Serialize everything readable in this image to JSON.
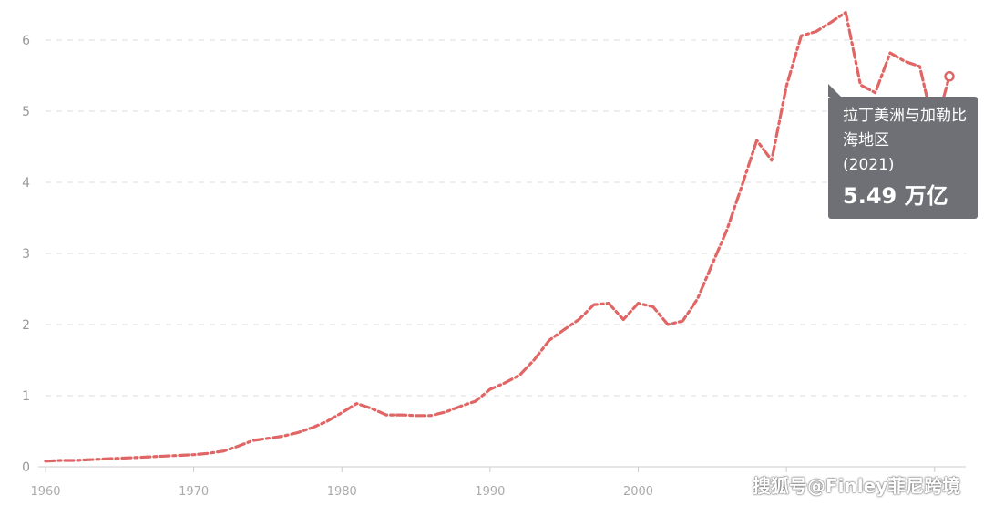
{
  "chart_data": {
    "type": "line",
    "title": "",
    "xlabel": "",
    "ylabel": "",
    "xlim": [
      1960,
      2021
    ],
    "ylim": [
      0,
      6.4
    ],
    "grid": true,
    "line_style": "dash-dot",
    "color": "#e06666",
    "y_ticks": [
      "0",
      "1",
      "2",
      "3",
      "4",
      "5",
      "6"
    ],
    "x_ticks": [
      "1960",
      "1970",
      "1980",
      "1990",
      "2000"
    ],
    "series": [
      {
        "name": "拉丁美洲与加勒比海地区",
        "x": [
          1960,
          1961,
          1962,
          1963,
          1964,
          1965,
          1966,
          1967,
          1968,
          1969,
          1970,
          1971,
          1972,
          1973,
          1974,
          1975,
          1976,
          1977,
          1978,
          1979,
          1980,
          1981,
          1982,
          1983,
          1984,
          1985,
          1986,
          1987,
          1988,
          1989,
          1990,
          1991,
          1992,
          1993,
          1994,
          1995,
          1996,
          1997,
          1998,
          1999,
          2000,
          2001,
          2002,
          2003,
          2004,
          2005,
          2006,
          2007,
          2008,
          2009,
          2010,
          2011,
          2012,
          2013,
          2014,
          2015,
          2016,
          2017,
          2018,
          2019,
          2020,
          2021
        ],
        "values": [
          0.08,
          0.09,
          0.09,
          0.1,
          0.11,
          0.12,
          0.13,
          0.14,
          0.15,
          0.16,
          0.17,
          0.19,
          0.22,
          0.29,
          0.37,
          0.4,
          0.43,
          0.48,
          0.55,
          0.64,
          0.76,
          0.89,
          0.82,
          0.73,
          0.73,
          0.72,
          0.72,
          0.77,
          0.85,
          0.92,
          1.09,
          1.18,
          1.29,
          1.51,
          1.78,
          1.93,
          2.07,
          2.28,
          2.3,
          2.07,
          2.3,
          2.25,
          2.0,
          2.05,
          2.36,
          2.85,
          3.34,
          3.95,
          4.59,
          4.31,
          5.35,
          6.06,
          6.12,
          6.25,
          6.39,
          5.37,
          5.26,
          5.82,
          5.7,
          5.63,
          4.73,
          5.49
        ]
      }
    ],
    "tooltip": {
      "series": "拉丁美洲与加勒比海地区",
      "year": "(2021)",
      "value": "5.49 万亿"
    }
  },
  "watermark": "搜狐号@Finley菲尼跨境"
}
